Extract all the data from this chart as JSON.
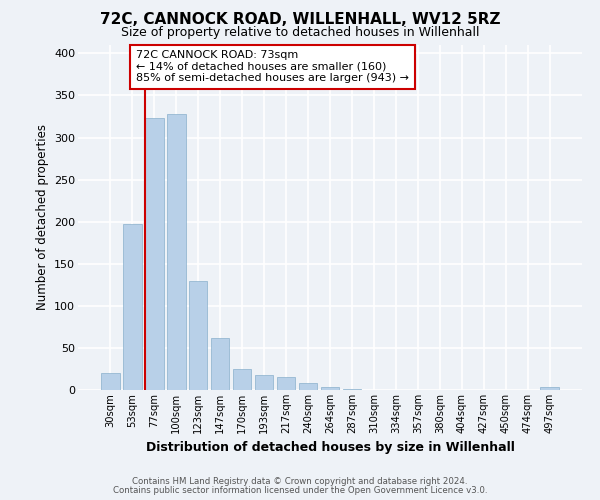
{
  "title": "72C, CANNOCK ROAD, WILLENHALL, WV12 5RZ",
  "subtitle": "Size of property relative to detached houses in Willenhall",
  "xlabel": "Distribution of detached houses by size in Willenhall",
  "ylabel": "Number of detached properties",
  "bar_labels": [
    "30sqm",
    "53sqm",
    "77sqm",
    "100sqm",
    "123sqm",
    "147sqm",
    "170sqm",
    "193sqm",
    "217sqm",
    "240sqm",
    "264sqm",
    "287sqm",
    "310sqm",
    "334sqm",
    "357sqm",
    "380sqm",
    "404sqm",
    "427sqm",
    "450sqm",
    "474sqm",
    "497sqm"
  ],
  "bar_values": [
    20,
    197,
    323,
    328,
    130,
    62,
    25,
    18,
    15,
    8,
    4,
    1,
    0,
    0,
    0,
    0,
    0,
    0,
    0,
    0,
    4
  ],
  "bar_color": "#b8d0e8",
  "highlight_bar_index": 2,
  "highlight_color": "#cc0000",
  "ylim": [
    0,
    410
  ],
  "yticks": [
    0,
    50,
    100,
    150,
    200,
    250,
    300,
    350,
    400
  ],
  "annotation_line1": "72C CANNOCK ROAD: 73sqm",
  "annotation_line2": "← 14% of detached houses are smaller (160)",
  "annotation_line3": "85% of semi-detached houses are larger (943) →",
  "footer_line1": "Contains HM Land Registry data © Crown copyright and database right 2024.",
  "footer_line2": "Contains public sector information licensed under the Open Government Licence v3.0.",
  "background_color": "#eef2f7",
  "grid_color": "#ffffff"
}
